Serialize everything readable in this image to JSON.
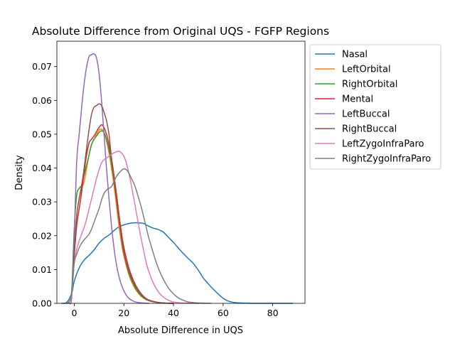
{
  "chart_data": {
    "type": "line",
    "title": "Absolute Difference from Original UQS - FGFP Regions",
    "xlabel": "Absolute Difference in UQS",
    "ylabel": "Density",
    "xlim": [
      -7,
      93
    ],
    "ylim": [
      0,
      0.0775
    ],
    "xticks": [
      0,
      20,
      40,
      60,
      80
    ],
    "xtick_labels": [
      "0",
      "20",
      "40",
      "60",
      "80"
    ],
    "yticks": [
      0,
      0.01,
      0.02,
      0.03,
      0.04,
      0.05,
      0.06,
      0.07
    ],
    "ytick_labels": [
      "0.00",
      "0.01",
      "0.02",
      "0.03",
      "0.04",
      "0.05",
      "0.06",
      "0.07"
    ],
    "grid": false,
    "legend_position": "outside-right",
    "series": [
      {
        "name": "Nasal",
        "color": "#1f77b4",
        "points": [
          [
            -5,
            0
          ],
          [
            -3,
            0.0003
          ],
          [
            -1,
            0.003
          ],
          [
            0,
            0.0065
          ],
          [
            2,
            0.0105
          ],
          [
            4,
            0.0128
          ],
          [
            6,
            0.0142
          ],
          [
            8,
            0.0158
          ],
          [
            10,
            0.0178
          ],
          [
            12,
            0.0192
          ],
          [
            14,
            0.0202
          ],
          [
            16,
            0.0215
          ],
          [
            18,
            0.0226
          ],
          [
            20,
            0.0232
          ],
          [
            22,
            0.0236
          ],
          [
            24,
            0.0238
          ],
          [
            26,
            0.0238
          ],
          [
            28,
            0.0236
          ],
          [
            30,
            0.0228
          ],
          [
            32,
            0.0222
          ],
          [
            34,
            0.0218
          ],
          [
            36,
            0.021
          ],
          [
            38,
            0.0195
          ],
          [
            40,
            0.018
          ],
          [
            42,
            0.0163
          ],
          [
            44,
            0.0147
          ],
          [
            46,
            0.0132
          ],
          [
            48,
            0.0118
          ],
          [
            50,
            0.0098
          ],
          [
            52,
            0.0075
          ],
          [
            54,
            0.0058
          ],
          [
            56,
            0.0042
          ],
          [
            58,
            0.0028
          ],
          [
            60,
            0.0015
          ],
          [
            62,
            0.0007
          ],
          [
            64,
            0.0003
          ],
          [
            67,
            0.0001
          ],
          [
            72,
            0
          ],
          [
            80,
            0
          ],
          [
            88,
            0
          ]
        ]
      },
      {
        "name": "LeftOrbital",
        "color": "#ff7f0e",
        "points": [
          [
            -3,
            0
          ],
          [
            -2,
            0.0005
          ],
          [
            -1,
            0.003
          ],
          [
            0,
            0.016
          ],
          [
            1,
            0.026
          ],
          [
            2,
            0.031
          ],
          [
            3,
            0.034
          ],
          [
            4,
            0.036
          ],
          [
            5,
            0.04
          ],
          [
            6,
            0.044
          ],
          [
            7,
            0.047
          ],
          [
            8,
            0.0485
          ],
          [
            9,
            0.05
          ],
          [
            10,
            0.0512
          ],
          [
            11,
            0.0515
          ],
          [
            12,
            0.0505
          ],
          [
            13,
            0.048
          ],
          [
            14,
            0.0445
          ],
          [
            15,
            0.04
          ],
          [
            16,
            0.035
          ],
          [
            17,
            0.029
          ],
          [
            18,
            0.023
          ],
          [
            19,
            0.018
          ],
          [
            20,
            0.014
          ],
          [
            22,
            0.0085
          ],
          [
            24,
            0.005
          ],
          [
            26,
            0.0028
          ],
          [
            28,
            0.0015
          ],
          [
            30,
            0.0008
          ],
          [
            33,
            0.0003
          ],
          [
            36,
            0.0001
          ],
          [
            40,
            0
          ]
        ]
      },
      {
        "name": "RightOrbital",
        "color": "#2ca02c",
        "points": [
          [
            -3,
            0
          ],
          [
            -2,
            0.0005
          ],
          [
            -1,
            0.004
          ],
          [
            0,
            0.022
          ],
          [
            1,
            0.032
          ],
          [
            2,
            0.034
          ],
          [
            3,
            0.035
          ],
          [
            4,
            0.038
          ],
          [
            5,
            0.041
          ],
          [
            6,
            0.044
          ],
          [
            7,
            0.047
          ],
          [
            8,
            0.0485
          ],
          [
            9,
            0.0495
          ],
          [
            10,
            0.0505
          ],
          [
            11,
            0.051
          ],
          [
            12,
            0.0505
          ],
          [
            13,
            0.0485
          ],
          [
            14,
            0.0455
          ],
          [
            15,
            0.0415
          ],
          [
            16,
            0.0365
          ],
          [
            17,
            0.031
          ],
          [
            18,
            0.025
          ],
          [
            19,
            0.0195
          ],
          [
            20,
            0.015
          ],
          [
            22,
            0.009
          ],
          [
            24,
            0.0055
          ],
          [
            26,
            0.003
          ],
          [
            28,
            0.0016
          ],
          [
            30,
            0.0008
          ],
          [
            33,
            0.0003
          ],
          [
            36,
            0.0001
          ],
          [
            40,
            0
          ]
        ]
      },
      {
        "name": "Mental",
        "color": "#d62728",
        "points": [
          [
            -3,
            0
          ],
          [
            -2,
            0.0005
          ],
          [
            -1,
            0.003
          ],
          [
            0,
            0.014
          ],
          [
            1,
            0.023
          ],
          [
            2,
            0.028
          ],
          [
            3,
            0.033
          ],
          [
            4,
            0.039
          ],
          [
            5,
            0.044
          ],
          [
            6,
            0.0475
          ],
          [
            7,
            0.0485
          ],
          [
            8,
            0.0495
          ],
          [
            9,
            0.0508
          ],
          [
            10,
            0.052
          ],
          [
            11,
            0.0528
          ],
          [
            12,
            0.052
          ],
          [
            13,
            0.05
          ],
          [
            14,
            0.047
          ],
          [
            15,
            0.043
          ],
          [
            16,
            0.038
          ],
          [
            17,
            0.0325
          ],
          [
            18,
            0.0265
          ],
          [
            19,
            0.021
          ],
          [
            20,
            0.0165
          ],
          [
            22,
            0.0105
          ],
          [
            24,
            0.0065
          ],
          [
            26,
            0.0038
          ],
          [
            28,
            0.002
          ],
          [
            30,
            0.001
          ],
          [
            33,
            0.0004
          ],
          [
            36,
            0.0001
          ],
          [
            40,
            0
          ]
        ]
      },
      {
        "name": "LeftBuccal",
        "color": "#9467bd",
        "points": [
          [
            -2,
            0
          ],
          [
            -1,
            0.002
          ],
          [
            0,
            0.02
          ],
          [
            1,
            0.042
          ],
          [
            2,
            0.05
          ],
          [
            3,
            0.058
          ],
          [
            4,
            0.065
          ],
          [
            5,
            0.07
          ],
          [
            6,
            0.073
          ],
          [
            7,
            0.0735
          ],
          [
            8,
            0.0738
          ],
          [
            9,
            0.0725
          ],
          [
            10,
            0.068
          ],
          [
            11,
            0.06
          ],
          [
            12,
            0.05
          ],
          [
            13,
            0.04
          ],
          [
            14,
            0.031
          ],
          [
            15,
            0.023
          ],
          [
            16,
            0.0165
          ],
          [
            17,
            0.0115
          ],
          [
            18,
            0.008
          ],
          [
            19,
            0.0055
          ],
          [
            20,
            0.0037
          ],
          [
            21,
            0.0024
          ],
          [
            22,
            0.0015
          ],
          [
            24,
            0.0006
          ],
          [
            26,
            0.0002
          ],
          [
            30,
            0
          ]
        ]
      },
      {
        "name": "RightBuccal",
        "color": "#8c564b",
        "points": [
          [
            -3,
            0
          ],
          [
            -2,
            0.0005
          ],
          [
            -1,
            0.003
          ],
          [
            0,
            0.015
          ],
          [
            1,
            0.026
          ],
          [
            2,
            0.031
          ],
          [
            3,
            0.035
          ],
          [
            4,
            0.04
          ],
          [
            5,
            0.046
          ],
          [
            6,
            0.0515
          ],
          [
            7,
            0.056
          ],
          [
            8,
            0.058
          ],
          [
            9,
            0.0585
          ],
          [
            10,
            0.059
          ],
          [
            11,
            0.0585
          ],
          [
            12,
            0.0565
          ],
          [
            13,
            0.054
          ],
          [
            14,
            0.05
          ],
          [
            15,
            0.043
          ],
          [
            16,
            0.037
          ],
          [
            17,
            0.031
          ],
          [
            18,
            0.025
          ],
          [
            19,
            0.0195
          ],
          [
            20,
            0.015
          ],
          [
            22,
            0.0095
          ],
          [
            24,
            0.006
          ],
          [
            26,
            0.0035
          ],
          [
            28,
            0.0018
          ],
          [
            30,
            0.0009
          ],
          [
            33,
            0.0003
          ],
          [
            36,
            0.0001
          ],
          [
            40,
            0
          ]
        ]
      },
      {
        "name": "LeftZygoInfraParo",
        "color": "#e377c2",
        "points": [
          [
            -3,
            0
          ],
          [
            -2,
            0.0005
          ],
          [
            -1,
            0.0025
          ],
          [
            0,
            0.012
          ],
          [
            1,
            0.016
          ],
          [
            2,
            0.0185
          ],
          [
            3,
            0.0205
          ],
          [
            4,
            0.0225
          ],
          [
            5,
            0.025
          ],
          [
            6,
            0.028
          ],
          [
            7,
            0.031
          ],
          [
            8,
            0.034
          ],
          [
            9,
            0.037
          ],
          [
            10,
            0.0395
          ],
          [
            11,
            0.0415
          ],
          [
            12,
            0.0425
          ],
          [
            13,
            0.043
          ],
          [
            14,
            0.0435
          ],
          [
            15,
            0.044
          ],
          [
            16,
            0.0445
          ],
          [
            17,
            0.0448
          ],
          [
            18,
            0.045
          ],
          [
            19,
            0.0445
          ],
          [
            20,
            0.0435
          ],
          [
            21,
            0.0415
          ],
          [
            22,
            0.0385
          ],
          [
            23,
            0.035
          ],
          [
            24,
            0.031
          ],
          [
            25,
            0.027
          ],
          [
            26,
            0.023
          ],
          [
            27,
            0.019
          ],
          [
            28,
            0.0155
          ],
          [
            29,
            0.012
          ],
          [
            30,
            0.0095
          ],
          [
            32,
            0.0058
          ],
          [
            34,
            0.0033
          ],
          [
            36,
            0.0018
          ],
          [
            38,
            0.0009
          ],
          [
            40,
            0.0004
          ],
          [
            44,
            0.0001
          ],
          [
            50,
            0
          ]
        ]
      },
      {
        "name": "RightZygoInfraParo",
        "color": "#7f7f7f",
        "points": [
          [
            -3,
            0
          ],
          [
            -2,
            0.0005
          ],
          [
            -1,
            0.003
          ],
          [
            0,
            0.012
          ],
          [
            1,
            0.0145
          ],
          [
            2,
            0.0165
          ],
          [
            3,
            0.0178
          ],
          [
            4,
            0.0188
          ],
          [
            5,
            0.0196
          ],
          [
            6,
            0.0205
          ],
          [
            7,
            0.022
          ],
          [
            8,
            0.024
          ],
          [
            9,
            0.026
          ],
          [
            10,
            0.028
          ],
          [
            11,
            0.0305
          ],
          [
            12,
            0.0325
          ],
          [
            13,
            0.0335
          ],
          [
            14,
            0.034
          ],
          [
            15,
            0.0345
          ],
          [
            16,
            0.036
          ],
          [
            17,
            0.0375
          ],
          [
            18,
            0.0385
          ],
          [
            19,
            0.0393
          ],
          [
            20,
            0.0398
          ],
          [
            21,
            0.0395
          ],
          [
            22,
            0.0385
          ],
          [
            23,
            0.037
          ],
          [
            24,
            0.0355
          ],
          [
            25,
            0.0335
          ],
          [
            26,
            0.031
          ],
          [
            27,
            0.0285
          ],
          [
            28,
            0.0255
          ],
          [
            29,
            0.0225
          ],
          [
            30,
            0.0195
          ],
          [
            31,
            0.017
          ],
          [
            32,
            0.0145
          ],
          [
            33,
            0.0122
          ],
          [
            34,
            0.0102
          ],
          [
            35,
            0.0085
          ],
          [
            36,
            0.007
          ],
          [
            38,
            0.0045
          ],
          [
            40,
            0.0028
          ],
          [
            42,
            0.0016
          ],
          [
            44,
            0.0009
          ],
          [
            46,
            0.0004
          ],
          [
            50,
            0.0001
          ],
          [
            55,
            0
          ]
        ]
      }
    ]
  }
}
